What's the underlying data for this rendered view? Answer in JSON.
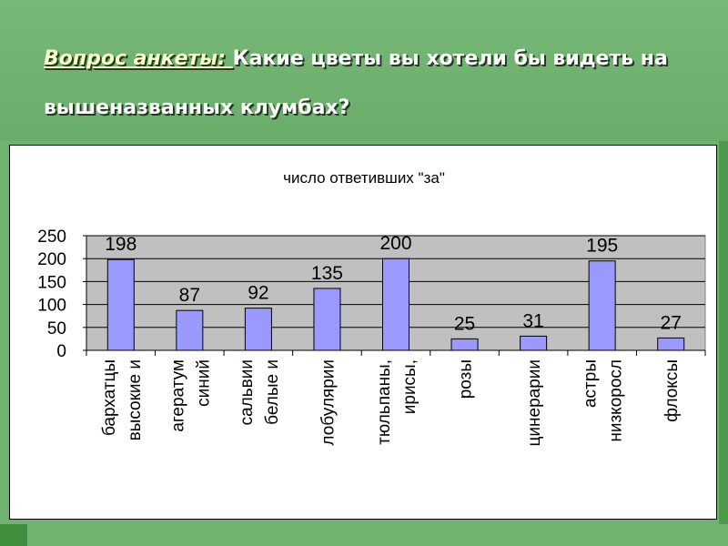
{
  "slide": {
    "title_lead": "Вопрос анкеты: ",
    "title_rest": "Какие цветы вы хотели бы видеть на вышеназванных клумбах?"
  },
  "colors": {
    "background": "#6fb36f",
    "plot_area": "#c0c0c0",
    "bar_fill": "#9999ff",
    "bar_stroke": "#000000"
  },
  "chart_data": {
    "type": "bar",
    "title": "число ответивших \"за\"",
    "xlabel": "",
    "ylabel": "",
    "ylim": [
      0,
      250
    ],
    "yticks": [
      0,
      50,
      100,
      150,
      200,
      250
    ],
    "grid": true,
    "legend": false,
    "categories": [
      [
        "бархатцы",
        "высокие и"
      ],
      [
        "агератум",
        "синий"
      ],
      [
        "сальвии",
        "белые и"
      ],
      [
        "лобулярии"
      ],
      [
        "тюльпаны,",
        "ирисы,"
      ],
      [
        "розы"
      ],
      [
        "цинерарии"
      ],
      [
        "астры",
        "низкоросл"
      ],
      [
        "флоксы"
      ]
    ],
    "values": [
      198,
      87,
      92,
      135,
      200,
      25,
      31,
      195,
      27
    ]
  }
}
